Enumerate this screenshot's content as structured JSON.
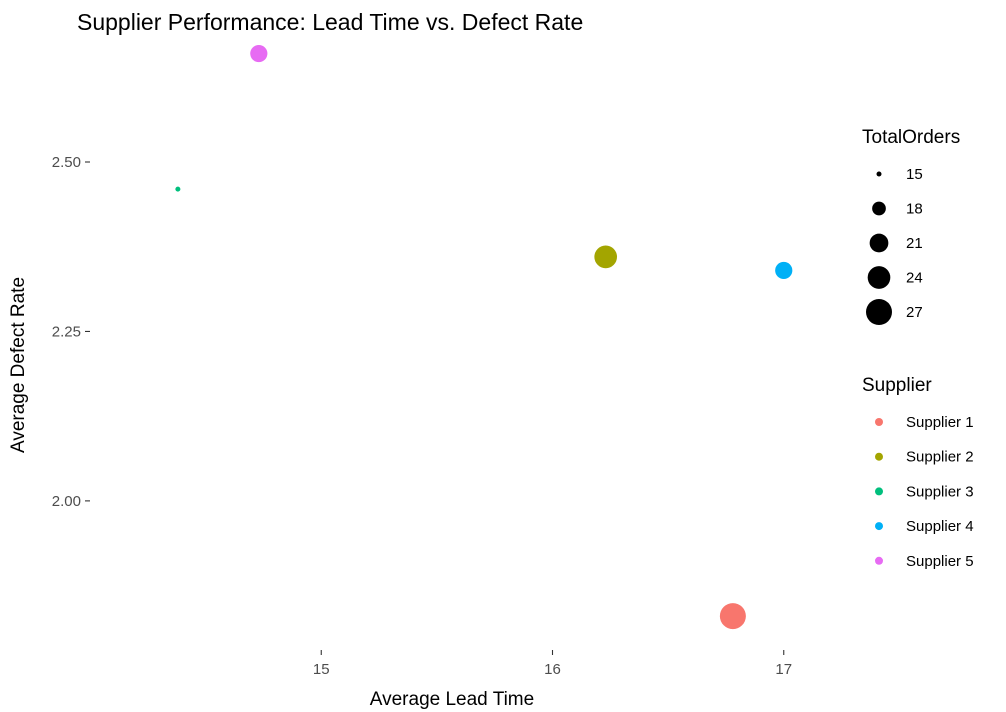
{
  "chart_data": {
    "type": "scatter",
    "title": "Supplier Performance: Lead Time vs. Defect Rate",
    "xlabel": "Average Lead Time",
    "ylabel": "Average Defect Rate",
    "xlim": [
      14.0,
      17.2
    ],
    "ylim": [
      1.78,
      2.68
    ],
    "x_ticks": [
      15,
      16,
      17
    ],
    "y_ticks": [
      2.0,
      2.25,
      2.5
    ],
    "x_tick_labels": [
      "15",
      "16",
      "17"
    ],
    "y_tick_labels": [
      "2.00",
      "2.25",
      "2.50"
    ],
    "grid": false,
    "legend_position": "right",
    "points": [
      {
        "supplier": "Supplier 1",
        "x": 16.78,
        "y": 1.83,
        "total_orders": 27
      },
      {
        "supplier": "Supplier 2",
        "x": 16.23,
        "y": 2.36,
        "total_orders": 24
      },
      {
        "supplier": "Supplier 3",
        "x": 14.38,
        "y": 2.46,
        "total_orders": 15
      },
      {
        "supplier": "Supplier 4",
        "x": 17.0,
        "y": 2.34,
        "total_orders": 20
      },
      {
        "supplier": "Supplier 5",
        "x": 14.73,
        "y": 2.66,
        "total_orders": 20
      }
    ],
    "size_legend": {
      "title": "TotalOrders",
      "values": [
        15,
        18,
        21,
        24,
        27
      ],
      "labels": [
        "15",
        "18",
        "21",
        "24",
        "27"
      ]
    },
    "color_legend": {
      "title": "Supplier",
      "entries": [
        {
          "label": "Supplier 1",
          "color": "#F8766D"
        },
        {
          "label": "Supplier 2",
          "color": "#A3A500"
        },
        {
          "label": "Supplier 3",
          "color": "#00BF7D"
        },
        {
          "label": "Supplier 4",
          "color": "#00B0F6"
        },
        {
          "label": "Supplier 5",
          "color": "#E76BF3"
        }
      ]
    }
  }
}
